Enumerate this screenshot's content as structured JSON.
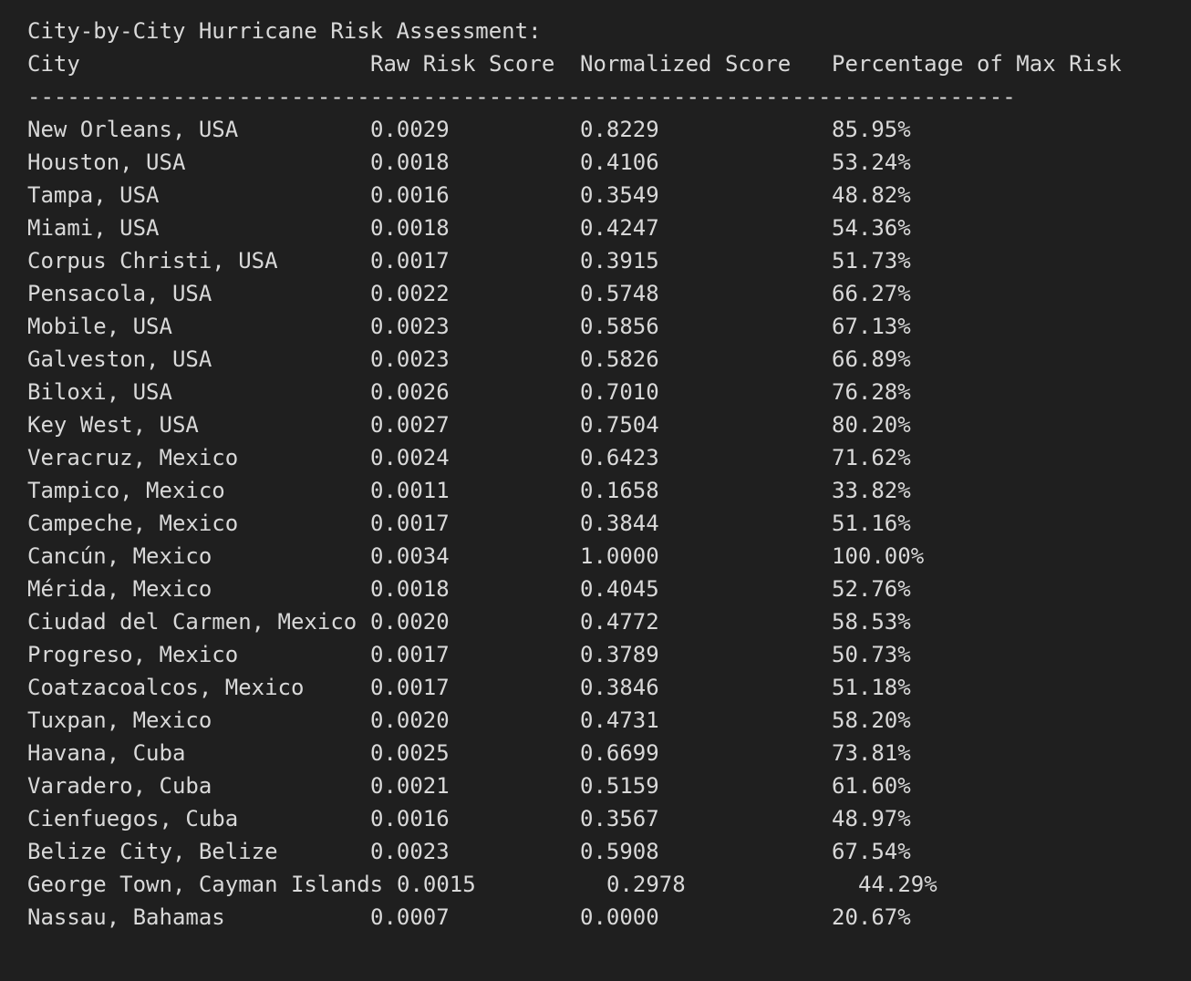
{
  "title": "City-by-City Hurricane Risk Assessment:",
  "headers": {
    "city": "City",
    "raw": "Raw Risk Score",
    "norm": "Normalized Score",
    "pct": "Percentage of Max Risk"
  },
  "rule": "---------------------------------------------------------------------------",
  "rows": [
    {
      "city": "New Orleans, USA",
      "raw": "0.0029",
      "norm": "0.8229",
      "pct": "85.95%"
    },
    {
      "city": "Houston, USA",
      "raw": "0.0018",
      "norm": "0.4106",
      "pct": "53.24%"
    },
    {
      "city": "Tampa, USA",
      "raw": "0.0016",
      "norm": "0.3549",
      "pct": "48.82%"
    },
    {
      "city": "Miami, USA",
      "raw": "0.0018",
      "norm": "0.4247",
      "pct": "54.36%"
    },
    {
      "city": "Corpus Christi, USA",
      "raw": "0.0017",
      "norm": "0.3915",
      "pct": "51.73%"
    },
    {
      "city": "Pensacola, USA",
      "raw": "0.0022",
      "norm": "0.5748",
      "pct": "66.27%"
    },
    {
      "city": "Mobile, USA",
      "raw": "0.0023",
      "norm": "0.5856",
      "pct": "67.13%"
    },
    {
      "city": "Galveston, USA",
      "raw": "0.0023",
      "norm": "0.5826",
      "pct": "66.89%"
    },
    {
      "city": "Biloxi, USA",
      "raw": "0.0026",
      "norm": "0.7010",
      "pct": "76.28%"
    },
    {
      "city": "Key West, USA",
      "raw": "0.0027",
      "norm": "0.7504",
      "pct": "80.20%"
    },
    {
      "city": "Veracruz, Mexico",
      "raw": "0.0024",
      "norm": "0.6423",
      "pct": "71.62%"
    },
    {
      "city": "Tampico, Mexico",
      "raw": "0.0011",
      "norm": "0.1658",
      "pct": "33.82%"
    },
    {
      "city": "Campeche, Mexico",
      "raw": "0.0017",
      "norm": "0.3844",
      "pct": "51.16%"
    },
    {
      "city": "Cancún, Mexico",
      "raw": "0.0034",
      "norm": "1.0000",
      "pct": "100.00%"
    },
    {
      "city": "Mérida, Mexico",
      "raw": "0.0018",
      "norm": "0.4045",
      "pct": "52.76%"
    },
    {
      "city": "Ciudad del Carmen, Mexico",
      "raw": "0.0020",
      "norm": "0.4772",
      "pct": "58.53%"
    },
    {
      "city": "Progreso, Mexico",
      "raw": "0.0017",
      "norm": "0.3789",
      "pct": "50.73%"
    },
    {
      "city": "Coatzacoalcos, Mexico",
      "raw": "0.0017",
      "norm": "0.3846",
      "pct": "51.18%"
    },
    {
      "city": "Tuxpan, Mexico",
      "raw": "0.0020",
      "norm": "0.4731",
      "pct": "58.20%"
    },
    {
      "city": "Havana, Cuba",
      "raw": "0.0025",
      "norm": "0.6699",
      "pct": "73.81%"
    },
    {
      "city": "Varadero, Cuba",
      "raw": "0.0021",
      "norm": "0.5159",
      "pct": "61.60%"
    },
    {
      "city": "Cienfuegos, Cuba",
      "raw": "0.0016",
      "norm": "0.3567",
      "pct": "48.97%"
    },
    {
      "city": "Belize City, Belize",
      "raw": "0.0023",
      "norm": "0.5908",
      "pct": "67.54%"
    },
    {
      "city": "George Town, Cayman Islands",
      "raw": "0.0015",
      "norm": "0.2978",
      "pct": "44.29%",
      "shifted": true
    },
    {
      "city": "Nassau, Bahamas",
      "raw": "0.0007",
      "norm": "0.0000",
      "pct": "20.67%"
    }
  ]
}
